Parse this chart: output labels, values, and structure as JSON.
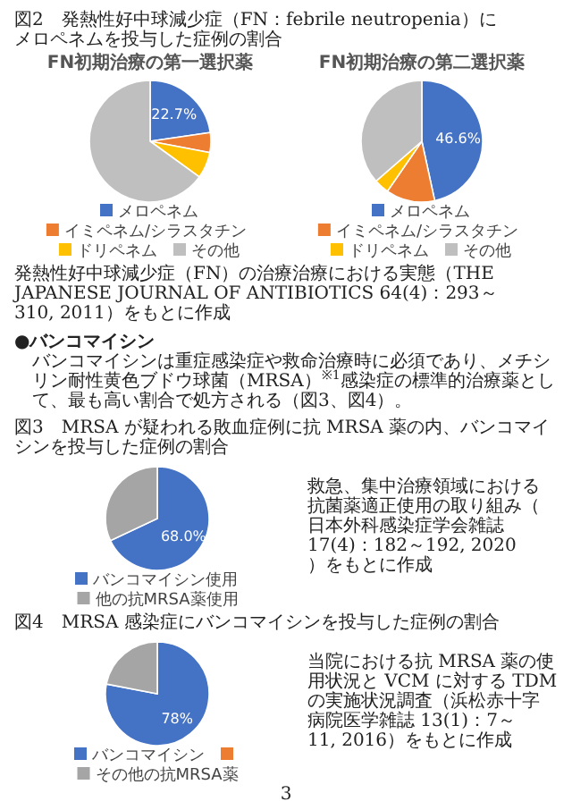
{
  "chart_data": [
    {
      "type": "pie",
      "title": "図2　発熱性好中球減少症（FN：febrile neutropenia）にメロペネムを投与した症例の割合",
      "subtitle": "FN初期治療の第一選択薬",
      "categories": [
        "メロペネム",
        "イミペネム/シラスタチン",
        "ドリペネム",
        "その他"
      ],
      "values": [
        22.7,
        5.3,
        7.0,
        65.0
      ],
      "colors": [
        "#4472c4",
        "#ed7d31",
        "#ffc000",
        "#bfbfbf"
      ],
      "value_labels": [
        "22.7%",
        null,
        null,
        null
      ],
      "legend": "bottom"
    },
    {
      "type": "pie",
      "subtitle": "FN初期治療の第二選択薬",
      "categories": [
        "メロペネム",
        "イミペネム/シラスタチン",
        "ドリペネム",
        "その他"
      ],
      "values": [
        46.6,
        13.0,
        4.0,
        36.4
      ],
      "colors": [
        "#4472c4",
        "#ed7d31",
        "#ffc000",
        "#bfbfbf"
      ],
      "value_labels": [
        "46.6%",
        null,
        null,
        null
      ],
      "legend": "bottom",
      "annotations": [
        "発熱性好中球減少症（FN）の治療治療における実態（THE JAPANESE JOURNAL OF ANTIBIOTICS 64(4)：293～310, 2011）をもとに作成",
        "●バンコマイシン",
        "バンコマイシンは重症感染症や救命治療時に必須であり、メチシリン耐性黄色ブドウ球菌（MRSA）$^{※1}$感染症の標準的治療薬として、最も高い割合で処方される（図3、図4）。"
      ]
    },
    {
      "type": "pie",
      "title": "図3　MRSA が疑われる敗血症例に抗 MRSA 薬の内、バンコマイシンを投与した症例の割合",
      "categories": [
        "バンコマイシン使用",
        "他の抗MRSA薬使用"
      ],
      "values": [
        68.0,
        32.0
      ],
      "colors": [
        "#4472c4",
        "#a5a5a5"
      ],
      "value_labels": [
        "68.0%",
        null
      ],
      "legend": "bottom",
      "annotations": [
        "救急、集中治療領域における抗菌薬適正使用の取り組み（日本外科感染症学会雑誌 17(4)：182～192, 2020）をもとに作成"
      ]
    },
    {
      "type": "pie",
      "title": "図4　MRSA 感染症にバンコマイシンを投与した症例の割合",
      "categories": [
        "バンコマイシン",
        null,
        "その他の抗MRSA薬"
      ],
      "values": [
        78,
        0,
        22
      ],
      "colors": [
        "#4472c4",
        "#ed7d31",
        "#a5a5a5"
      ],
      "value_labels": [
        "78%",
        null,
        null
      ],
      "legend": "bottom",
      "annotations": [
        "当院における抗 MRSA 薬の使用状況と VCM に対する TDM の実施状況調査（浜松赤十字病院医学雑誌 13(1)：7～11, 2016）をもとに作成",
        "3"
      ]
    }
  ]
}
